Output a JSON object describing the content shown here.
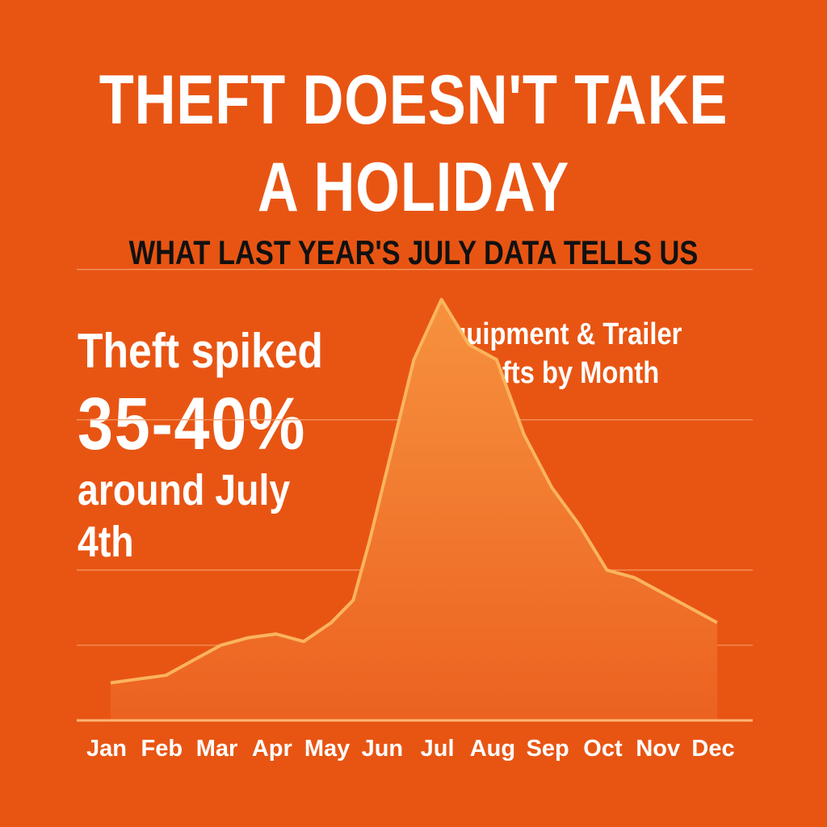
{
  "header": {
    "title_line1": "THEFT DOESN'T TAKE",
    "title_line2": "A HOLIDAY",
    "subtitle": "WHAT LAST YEAR'S JULY DATA TELLS US"
  },
  "callout": {
    "line1": "Theft spiked",
    "line2": "35-40%",
    "line3": "around July 4th"
  },
  "colors": {
    "background": "#e85513",
    "line": "#fbb45e",
    "fill_top": "#f6923e",
    "fill_bottom": "#ec6220",
    "grid": "#f39a66",
    "axis": "#fdb671"
  },
  "chart_data": {
    "type": "area",
    "title_line1": "Equipment & Trailer",
    "title_line2": "Thefts by Month",
    "categories": [
      "Jan",
      "Feb",
      "Mar",
      "Apr",
      "May",
      "Jun",
      "Jul",
      "Aug",
      "Sep",
      "Oct",
      "Nov",
      "Dec"
    ],
    "x": [
      0,
      0.5,
      1,
      1.5,
      2,
      2.5,
      3,
      3.5,
      4,
      4.4,
      4.7,
      5,
      5.5,
      6,
      6.5,
      7,
      7.5,
      8,
      8.5,
      9,
      9.5,
      10,
      10.5,
      11
    ],
    "y": [
      5,
      5.5,
      6,
      8,
      10,
      11,
      11.5,
      10.5,
      13,
      16,
      24,
      33,
      48,
      56,
      50,
      48,
      38,
      31,
      26,
      20,
      19,
      17,
      15,
      13
    ],
    "ylim": [
      0,
      62
    ],
    "grid_lines": [
      20,
      40,
      60
    ],
    "grid": true,
    "legend": "none"
  }
}
